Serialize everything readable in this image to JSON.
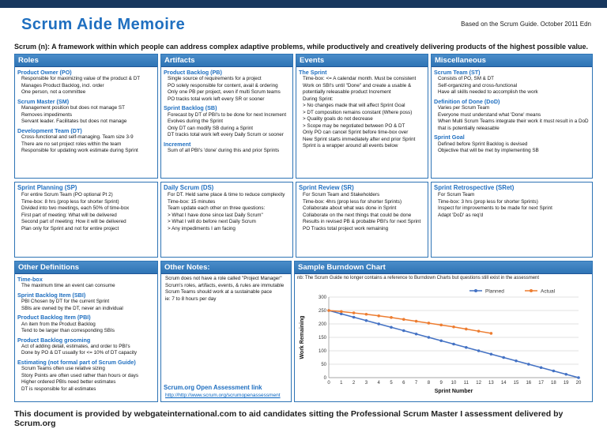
{
  "header": {
    "title": "Scrum Aide Memoire",
    "top_right": "Based on the Scrum Guide. October 2011 Edn",
    "subtitle": "Scrum (n): A framework within which people can address complex adaptive problems, while productively and creatively delivering products of the highest possible value."
  },
  "colors": {
    "top_bar": "#17375E",
    "header_bar": "#2E74B5",
    "accent_blue": "#1F6FC0",
    "planned": "#4472C4",
    "actual": "#ED7D31"
  },
  "row1": [
    {
      "title": "Roles",
      "sections": [
        {
          "heading": "Product Owner (PO)",
          "items": [
            "Responsible for maximizing value of the product & DT",
            "Manages Product Backlog, incl. order",
            "One person, not a committee"
          ]
        },
        {
          "heading": "Scrum Master (SM)",
          "items": [
            "Management position but does not manage ST",
            "Removes impediments",
            "Servant leader. Facilitates but does not manage"
          ]
        },
        {
          "heading": "Development Team (DT)",
          "items": [
            "Cross-functional and self-managing. Team size 3-9",
            "There are no set project roles within the team",
            "Responsible for updating work estimate during Sprint"
          ]
        }
      ]
    },
    {
      "title": "Artifacts",
      "sections": [
        {
          "heading": "Product Backlog (PB)",
          "items": [
            "Single source of requirements for a project",
            "PO solely responsible for content, avail & ordering",
            "Only one PB per project, even if multi Scrum teams",
            "PO tracks total work left every SR or sooner"
          ]
        },
        {
          "heading": "Sprint Backlog (SB)",
          "items": [
            "Forecast by DT of PBI's to be done for next Increment",
            "Evolves during the Sprint",
            "Only DT can modify SB during a Sprint",
            "DT tracks total work left every Daily Scrum or sooner"
          ]
        },
        {
          "heading": "Increment",
          "items": [
            "Sum of all PBI's 'done' during this and prior Sprints"
          ]
        }
      ]
    },
    {
      "title": "Events",
      "sections": [
        {
          "heading": "The Sprint",
          "items": [
            "Time-box: <= A calendar month. Must be consistent",
            "Work on SBI's until \"Done\" and create a usable & potentially releasable product Increment",
            "During Sprint:",
            "> No changes made that will affect Sprint Goal",
            "> DT composition remains constant (Where poss)",
            "> Quality goals do not decrease",
            "> Scope may be negotiated between PO & DT",
            "Only PO can cancel Sprint before time-box over",
            "New Sprint starts immediately after end prior Sprint",
            "Sprint is a wrapper around all events below"
          ]
        }
      ]
    },
    {
      "title": "Miscellaneous",
      "sections": [
        {
          "heading": "Scrum Team (ST)",
          "items": [
            "Consists of PO, SM & DT",
            "Self-organizing and cross-functional",
            "Have all skills needed to accomplish the work"
          ]
        },
        {
          "heading": "Definition of Done (DoD)",
          "items": [
            "Varies per Scrum Team",
            "Everyone must understand what 'Done' means",
            "When Multi Scrum Teams integrate their work it must result in a DoD that is potentially releasable"
          ]
        },
        {
          "heading": "Sprint Goal",
          "items": [
            "Defined before Sprint Backlog is devised",
            "Objective that will be met by implementing SB"
          ]
        }
      ]
    }
  ],
  "row2": [
    {
      "heading": "Sprint Planning (SP)",
      "items": [
        "For entire Scrum Team (PO optional Pt 2)",
        "Time-box: 8 hrs (prop less for shorter Sprint)",
        "Divided into two meetings, each 50% of time-box",
        "First part of meeting: What will be delivered",
        "Second part of meeting: How it will be delivered",
        "Plan only for Sprint and not for entire project"
      ]
    },
    {
      "heading": "Daily Scrum (DS)",
      "items": [
        "For DT. Held same place & time to reduce complexity",
        "Time-box: 15 minutes",
        "Team update each other on three questions:",
        "> What I have done since last Daily Scrum\"",
        "> What I will do before next Daily Scrum",
        "> Any impediments I am facing"
      ]
    },
    {
      "heading": "Sprint Review (SR)",
      "items": [
        "For Scrum Team and Stakeholders",
        "Time-box: 4hrs (prop less for shorter Sprints)",
        "Collaborate about what was done in Sprint",
        "Collaborate on the next things that could be done",
        "Results in revised PB & probable PBI's for next Sprint",
        "PO Tracks total project work remaining"
      ]
    },
    {
      "heading": "Sprint Retrospective (SRet)",
      "items": [
        "For Scrum Team",
        "Time-box: 3 hrs (prop less for shorter Sprints)",
        "Inspect for improvements to be made for next Sprint",
        "Adapt 'DoD' as req'd"
      ]
    }
  ],
  "definitions": {
    "title": "Other Definitions",
    "sections": [
      {
        "heading": "Time-box",
        "items": [
          "The maximum time an event can consume"
        ]
      },
      {
        "heading": "Sprint Backlog Item (SBI)",
        "items": [
          "PBI Chosen by DT for the current Sprint",
          "SBIs are owned by the DT, never an individual"
        ]
      },
      {
        "heading": "Product Backlog Item (PBI)",
        "items": [
          "An item from the Product Backlog",
          "Tend to be larger than corresponding SBIs"
        ]
      },
      {
        "heading": "Product Backlog grooming",
        "items": [
          "Act of adding detail, estimates, and order to PBI's",
          "Done by PO & DT usually for <= 10% of DT capacity"
        ]
      },
      {
        "heading": "Estimating (not formal part of Scrum Guide)",
        "items": [
          "Scrum Teams often use relative sizing",
          "Story Points are often used rather than hours or days",
          "Higher ordered PBIs need better estimates",
          "DT is responsible for all estimates"
        ]
      }
    ]
  },
  "notes": {
    "title": "Other Notes:",
    "items": [
      "Scrum does not have a role called \"Project Manager\"",
      "Scrum's roles, artifacts, events, & rules are immutable",
      "Scrum Teams should work at a sustainable pace",
      "ie: 7 to 8 hours per day"
    ],
    "link_heading": "Scrum.org Open Assessment link",
    "link_url": "http://http://www.scrum.org/scrumopenassessment"
  },
  "chart_panel": {
    "title": "Sample Burndown Chart",
    "note": "nb: The Scrum Guide no longer contains a reference to Burndown Charts but questions still exist in the assessment"
  },
  "chart_data": {
    "type": "line",
    "title": "Sample Burndown Chart",
    "xlabel": "Sprint Number",
    "ylabel": "Work Remaining",
    "xlim": [
      0,
      20
    ],
    "ylim": [
      0,
      300
    ],
    "xticks": [
      0,
      1,
      2,
      3,
      4,
      5,
      6,
      7,
      8,
      9,
      10,
      11,
      12,
      13,
      14,
      15,
      16,
      17,
      18,
      19,
      20
    ],
    "yticks": [
      0,
      50,
      100,
      150,
      200,
      250,
      300
    ],
    "grid": true,
    "legend_position": "top-right",
    "series": [
      {
        "name": "Planned",
        "color": "#4472C4",
        "x": [
          0,
          1,
          2,
          3,
          4,
          5,
          6,
          7,
          8,
          9,
          10,
          11,
          12,
          13,
          14,
          15,
          16,
          17,
          18,
          19,
          20
        ],
        "values": [
          250,
          237.5,
          225,
          212.5,
          200,
          187.5,
          175,
          162.5,
          150,
          137.5,
          125,
          112.5,
          100,
          87.5,
          75,
          62.5,
          50,
          37.5,
          25,
          12.5,
          0
        ]
      },
      {
        "name": "Actual",
        "color": "#ED7D31",
        "x": [
          0,
          1,
          2,
          3,
          4,
          5,
          6,
          7,
          8,
          9,
          10,
          11,
          12,
          13
        ],
        "values": [
          250,
          246,
          241,
          236,
          230,
          224,
          217,
          210,
          203,
          196,
          189,
          181,
          173,
          165
        ]
      }
    ]
  },
  "footer": "This document is provided by webgateinternational.com to aid candidates sitting the Professional Scrum Master I assessment delivered by Scrum.org"
}
